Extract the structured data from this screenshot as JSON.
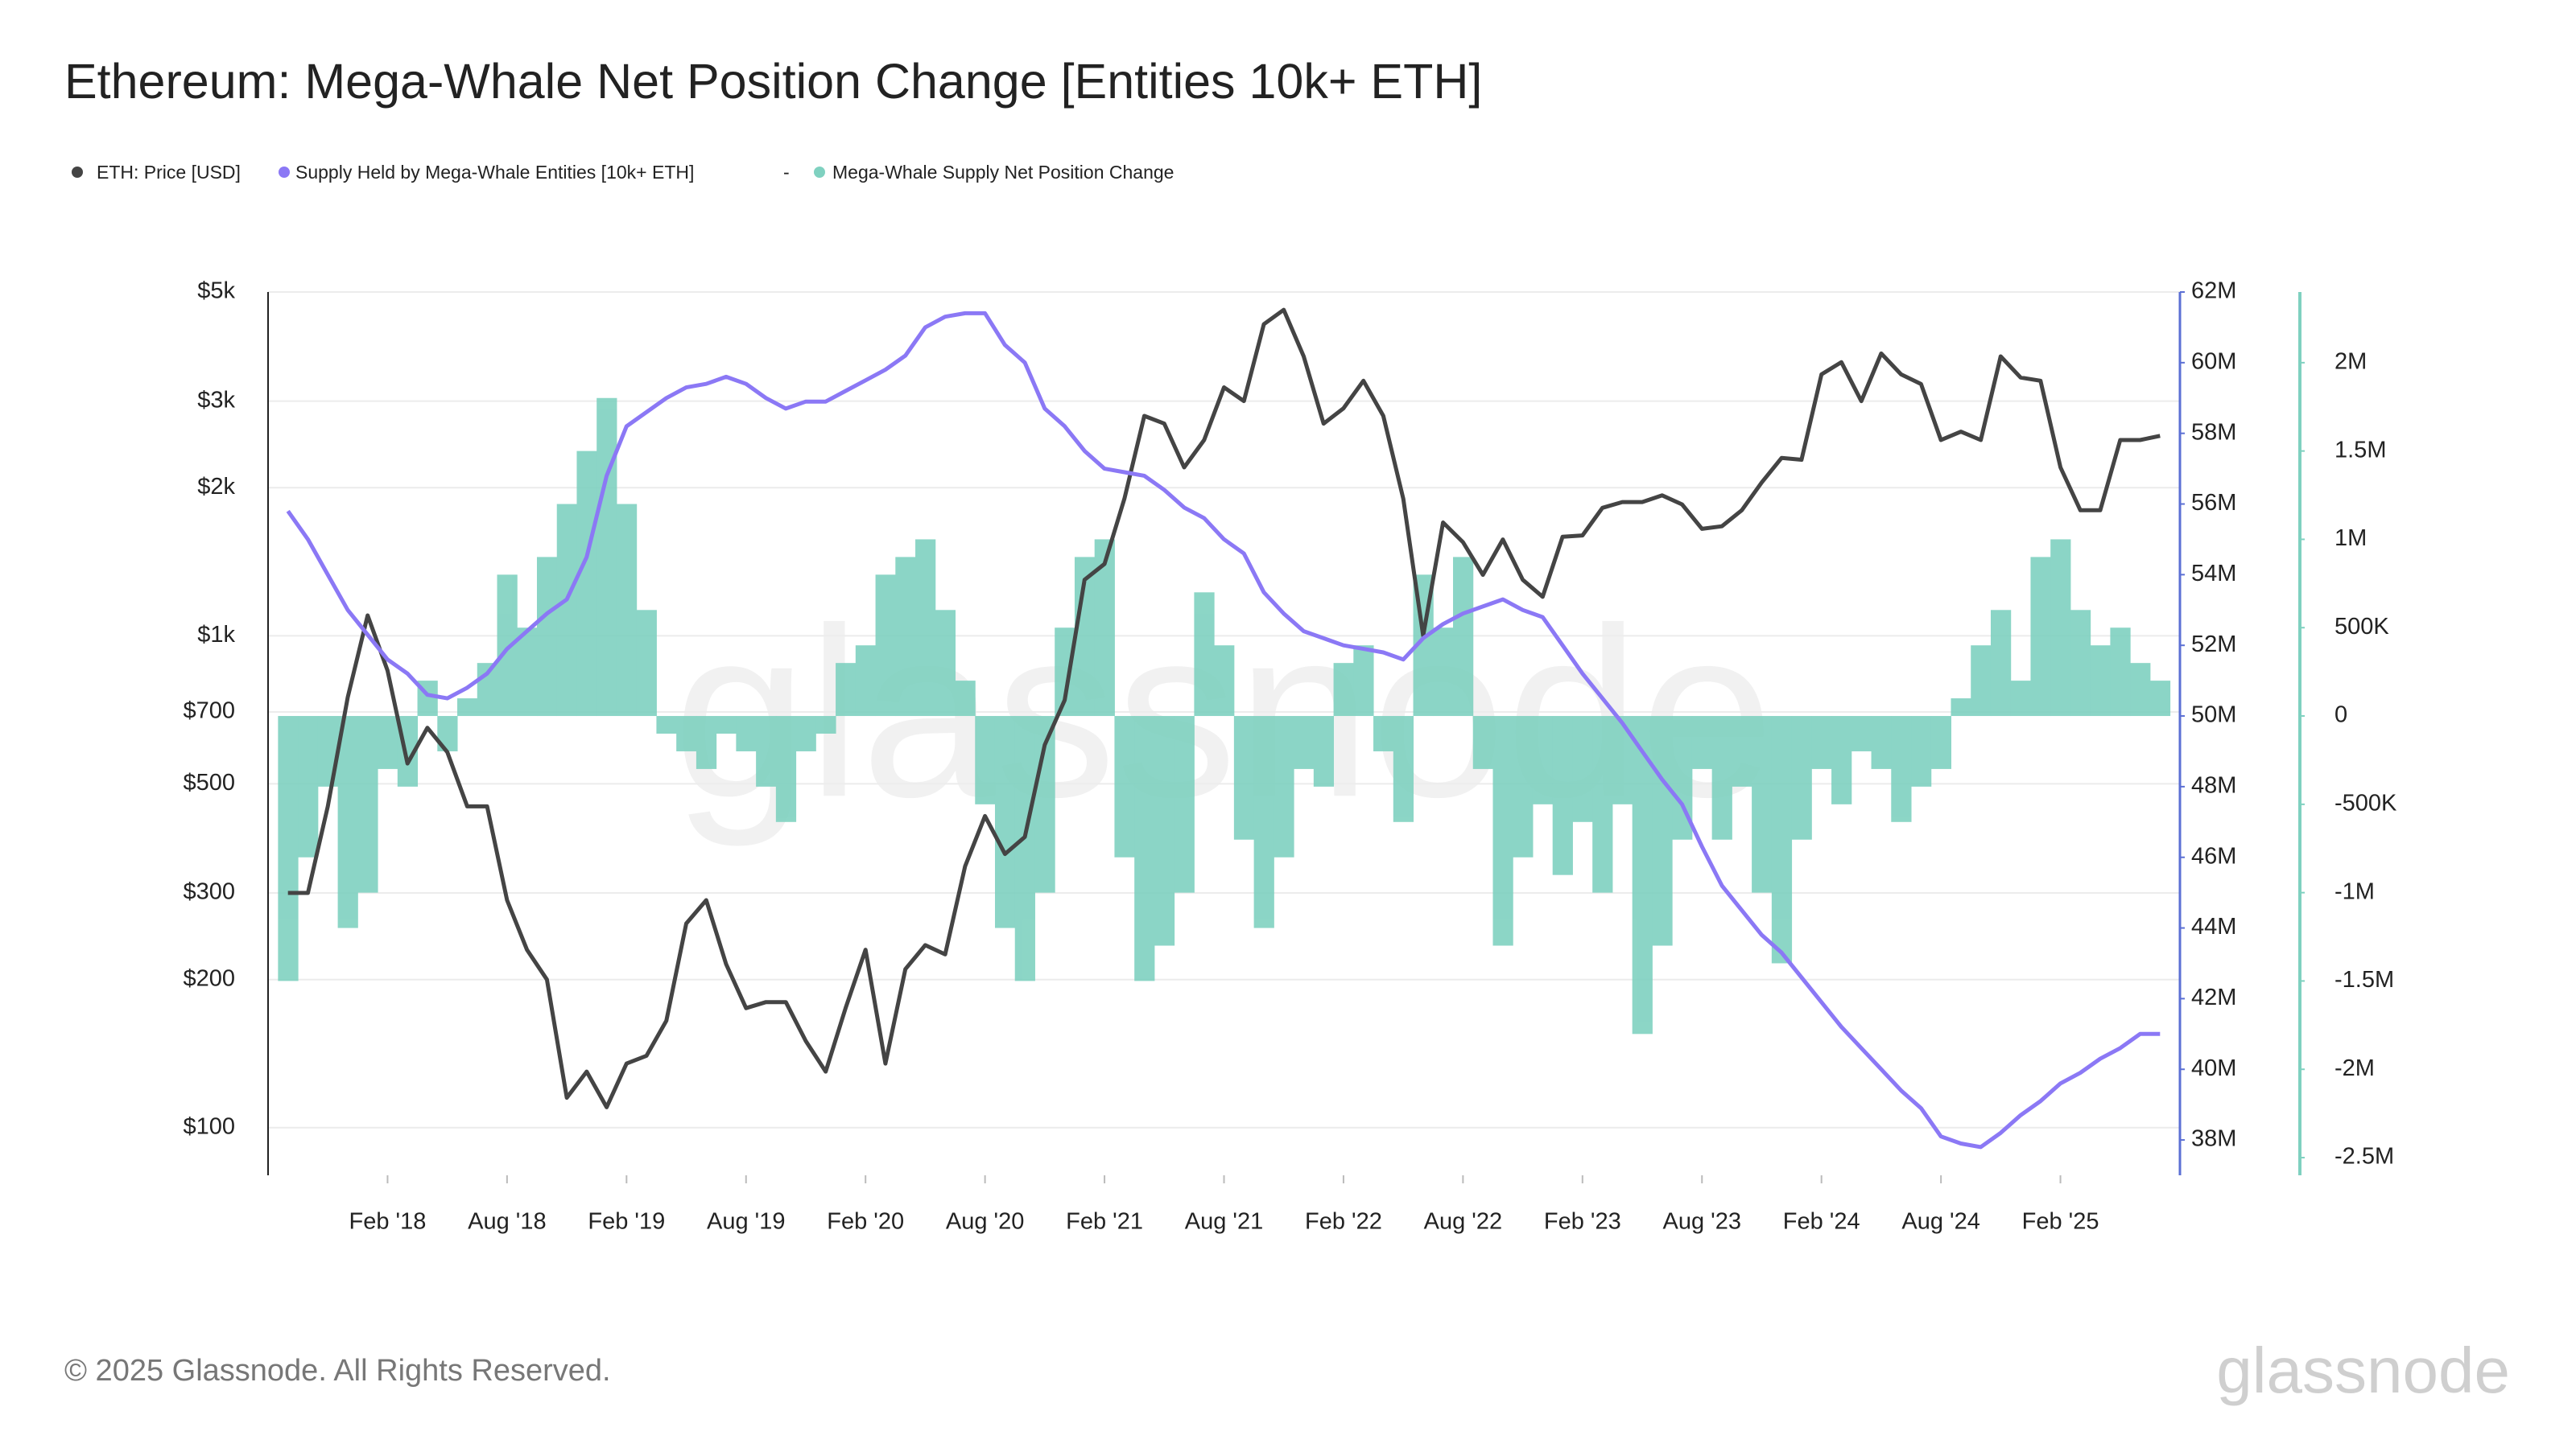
{
  "chart_data": {
    "type": "line",
    "title": "Ethereum: Mega-Whale Net Position Change [Entities 10k+ ETH]",
    "legend_separator": "-",
    "watermark": "glassnode",
    "copyright": "© 2025 Glassnode. All Rights Reserved.",
    "logo": "glassnode",
    "yscale": "log",
    "grid": true,
    "x": [
      "2017-09",
      "2017-10",
      "2017-11",
      "2017-12",
      "2018-01",
      "2018-02",
      "2018-03",
      "2018-04",
      "2018-05",
      "2018-06",
      "2018-07",
      "2018-08",
      "2018-09",
      "2018-10",
      "2018-11",
      "2018-12",
      "2019-01",
      "2019-02",
      "2019-03",
      "2019-04",
      "2019-05",
      "2019-06",
      "2019-07",
      "2019-08",
      "2019-09",
      "2019-10",
      "2019-11",
      "2019-12",
      "2020-01",
      "2020-02",
      "2020-03",
      "2020-04",
      "2020-05",
      "2020-06",
      "2020-07",
      "2020-08",
      "2020-09",
      "2020-10",
      "2020-11",
      "2020-12",
      "2021-01",
      "2021-02",
      "2021-03",
      "2021-04",
      "2021-05",
      "2021-06",
      "2021-07",
      "2021-08",
      "2021-09",
      "2021-10",
      "2021-11",
      "2021-12",
      "2022-01",
      "2022-02",
      "2022-03",
      "2022-04",
      "2022-05",
      "2022-06",
      "2022-07",
      "2022-08",
      "2022-09",
      "2022-10",
      "2022-11",
      "2022-12",
      "2023-01",
      "2023-02",
      "2023-03",
      "2023-04",
      "2023-05",
      "2023-06",
      "2023-07",
      "2023-08",
      "2023-09",
      "2023-10",
      "2023-11",
      "2023-12",
      "2024-01",
      "2024-02",
      "2024-03",
      "2024-04",
      "2024-05",
      "2024-06",
      "2024-07",
      "2024-08",
      "2024-09",
      "2024-10",
      "2024-11",
      "2024-12",
      "2025-01",
      "2025-02",
      "2025-03",
      "2025-04",
      "2025-05",
      "2025-06",
      "2025-07"
    ],
    "xlim": [
      "2017-08",
      "2025-08"
    ],
    "xticks": [
      {
        "value": "2018-02",
        "label": "Feb '18"
      },
      {
        "value": "2018-08",
        "label": "Aug '18"
      },
      {
        "value": "2019-02",
        "label": "Feb '19"
      },
      {
        "value": "2019-08",
        "label": "Aug '19"
      },
      {
        "value": "2020-02",
        "label": "Feb '20"
      },
      {
        "value": "2020-08",
        "label": "Aug '20"
      },
      {
        "value": "2021-02",
        "label": "Feb '21"
      },
      {
        "value": "2021-08",
        "label": "Aug '21"
      },
      {
        "value": "2022-02",
        "label": "Feb '22"
      },
      {
        "value": "2022-08",
        "label": "Aug '22"
      },
      {
        "value": "2023-02",
        "label": "Feb '23"
      },
      {
        "value": "2023-08",
        "label": "Aug '23"
      },
      {
        "value": "2024-02",
        "label": "Feb '24"
      },
      {
        "value": "2024-08",
        "label": "Aug '24"
      },
      {
        "value": "2025-02",
        "label": "Feb '25"
      }
    ],
    "ylim": [
      80,
      5000
    ],
    "yticks": [
      {
        "value": 5000,
        "label": "$5k"
      },
      {
        "value": 3000,
        "label": "$3k"
      },
      {
        "value": 2000,
        "label": "$2k"
      },
      {
        "value": 1000,
        "label": "$1k"
      },
      {
        "value": 700,
        "label": "$700"
      },
      {
        "value": 500,
        "label": "$500"
      },
      {
        "value": 300,
        "label": "$300"
      },
      {
        "value": 200,
        "label": "$200"
      },
      {
        "value": 100,
        "label": "$100"
      }
    ],
    "y2lim": [
      37000000,
      62000000
    ],
    "y2ticks": [
      {
        "value": 62000000,
        "label": "62M"
      },
      {
        "value": 60000000,
        "label": "60M"
      },
      {
        "value": 58000000,
        "label": "58M"
      },
      {
        "value": 56000000,
        "label": "56M"
      },
      {
        "value": 54000000,
        "label": "54M"
      },
      {
        "value": 52000000,
        "label": "52M"
      },
      {
        "value": 50000000,
        "label": "50M"
      },
      {
        "value": 48000000,
        "label": "48M"
      },
      {
        "value": 46000000,
        "label": "46M"
      },
      {
        "value": 44000000,
        "label": "44M"
      },
      {
        "value": 42000000,
        "label": "42M"
      },
      {
        "value": 40000000,
        "label": "40M"
      },
      {
        "value": 38000000,
        "label": "38M"
      }
    ],
    "y3lim": [
      -2600000,
      2400000
    ],
    "y3ticks": [
      {
        "value": 2000000,
        "label": "2M"
      },
      {
        "value": 1500000,
        "label": "1.5M"
      },
      {
        "value": 1000000,
        "label": "1M"
      },
      {
        "value": 500000,
        "label": "500K"
      },
      0,
      {
        "value": -500000,
        "label": "-500K"
      },
      {
        "value": -1000000,
        "label": "-1M"
      },
      {
        "value": -1500000,
        "label": "-1.5M"
      },
      {
        "value": -2000000,
        "label": "-2M"
      },
      {
        "value": -2500000,
        "label": "-2.5M"
      }
    ],
    "series": [
      {
        "name": "ETH: Price [USD]",
        "color": "#444444",
        "type": "line",
        "axis": "y",
        "values": [
          300,
          300,
          450,
          750,
          1100,
          850,
          550,
          650,
          580,
          450,
          450,
          290,
          230,
          200,
          115,
          130,
          110,
          135,
          140,
          165,
          260,
          290,
          215,
          175,
          180,
          180,
          150,
          130,
          175,
          230,
          135,
          210,
          235,
          225,
          340,
          430,
          360,
          390,
          600,
          740,
          1300,
          1400,
          1900,
          2800,
          2700,
          2200,
          2500,
          3200,
          3000,
          4300,
          4600,
          3700,
          2700,
          2900,
          3300,
          2800,
          1900,
          1000,
          1700,
          1550,
          1330,
          1570,
          1300,
          1200,
          1590,
          1600,
          1820,
          1870,
          1870,
          1930,
          1850,
          1650,
          1670,
          1800,
          2050,
          2300,
          2280,
          3400,
          3600,
          3000,
          3750,
          3400,
          3250,
          2500,
          2600,
          2500,
          3700,
          3350,
          3300,
          2200,
          1800,
          1800,
          2500,
          2500,
          2550
        ]
      },
      {
        "name": "Supply Held by Mega-Whale Entities [10k+ ETH]",
        "color": "#8b78f5",
        "type": "line",
        "axis": "y2",
        "values": [
          55800000,
          55000000,
          54000000,
          53000000,
          52300000,
          51600000,
          51200000,
          50600000,
          50500000,
          50800000,
          51200000,
          51900000,
          52400000,
          52900000,
          53300000,
          54500000,
          56800000,
          58200000,
          58600000,
          59000000,
          59300000,
          59400000,
          59600000,
          59400000,
          59000000,
          58700000,
          58900000,
          58900000,
          59200000,
          59500000,
          59800000,
          60200000,
          61000000,
          61300000,
          61400000,
          61400000,
          60500000,
          60000000,
          58700000,
          58200000,
          57500000,
          57000000,
          56900000,
          56800000,
          56400000,
          55900000,
          55600000,
          55000000,
          54600000,
          53500000,
          52900000,
          52400000,
          52200000,
          52000000,
          51900000,
          51800000,
          51600000,
          52200000,
          52600000,
          52900000,
          53100000,
          53300000,
          53000000,
          52800000,
          52000000,
          51200000,
          50500000,
          49800000,
          49000000,
          48200000,
          47500000,
          46300000,
          45200000,
          44500000,
          43800000,
          43300000,
          42600000,
          41900000,
          41200000,
          40600000,
          40000000,
          39400000,
          38900000,
          38100000,
          37900000,
          37800000,
          38200000,
          38700000,
          39100000,
          39600000,
          39900000,
          40300000,
          40600000,
          41000000,
          41000000
        ]
      },
      {
        "name": "Mega-Whale Supply Net Position Change",
        "color": "#7fd1c0",
        "type": "bar",
        "axis": "y3",
        "values": [
          -1500000,
          -800000,
          -400000,
          -1200000,
          -1000000,
          -300000,
          -400000,
          200000,
          -200000,
          100000,
          300000,
          800000,
          500000,
          900000,
          1200000,
          1500000,
          1800000,
          1200000,
          600000,
          -100000,
          -200000,
          -300000,
          -100000,
          -200000,
          -400000,
          -600000,
          -200000,
          -100000,
          300000,
          400000,
          800000,
          900000,
          1000000,
          600000,
          200000,
          -500000,
          -1200000,
          -1500000,
          -1000000,
          500000,
          900000,
          1000000,
          -800000,
          -1500000,
          -1300000,
          -1000000,
          700000,
          400000,
          -700000,
          -1200000,
          -800000,
          -300000,
          -400000,
          300000,
          400000,
          -200000,
          -600000,
          800000,
          500000,
          900000,
          -300000,
          -1300000,
          -800000,
          -500000,
          -900000,
          -600000,
          -1000000,
          -500000,
          -1800000,
          -1300000,
          -700000,
          -300000,
          -700000,
          -400000,
          -1000000,
          -1400000,
          -700000,
          -300000,
          -500000,
          -200000,
          -300000,
          -600000,
          -400000,
          -300000,
          100000,
          400000,
          600000,
          200000,
          900000,
          1000000,
          600000,
          400000,
          500000,
          300000,
          200000
        ]
      }
    ]
  }
}
